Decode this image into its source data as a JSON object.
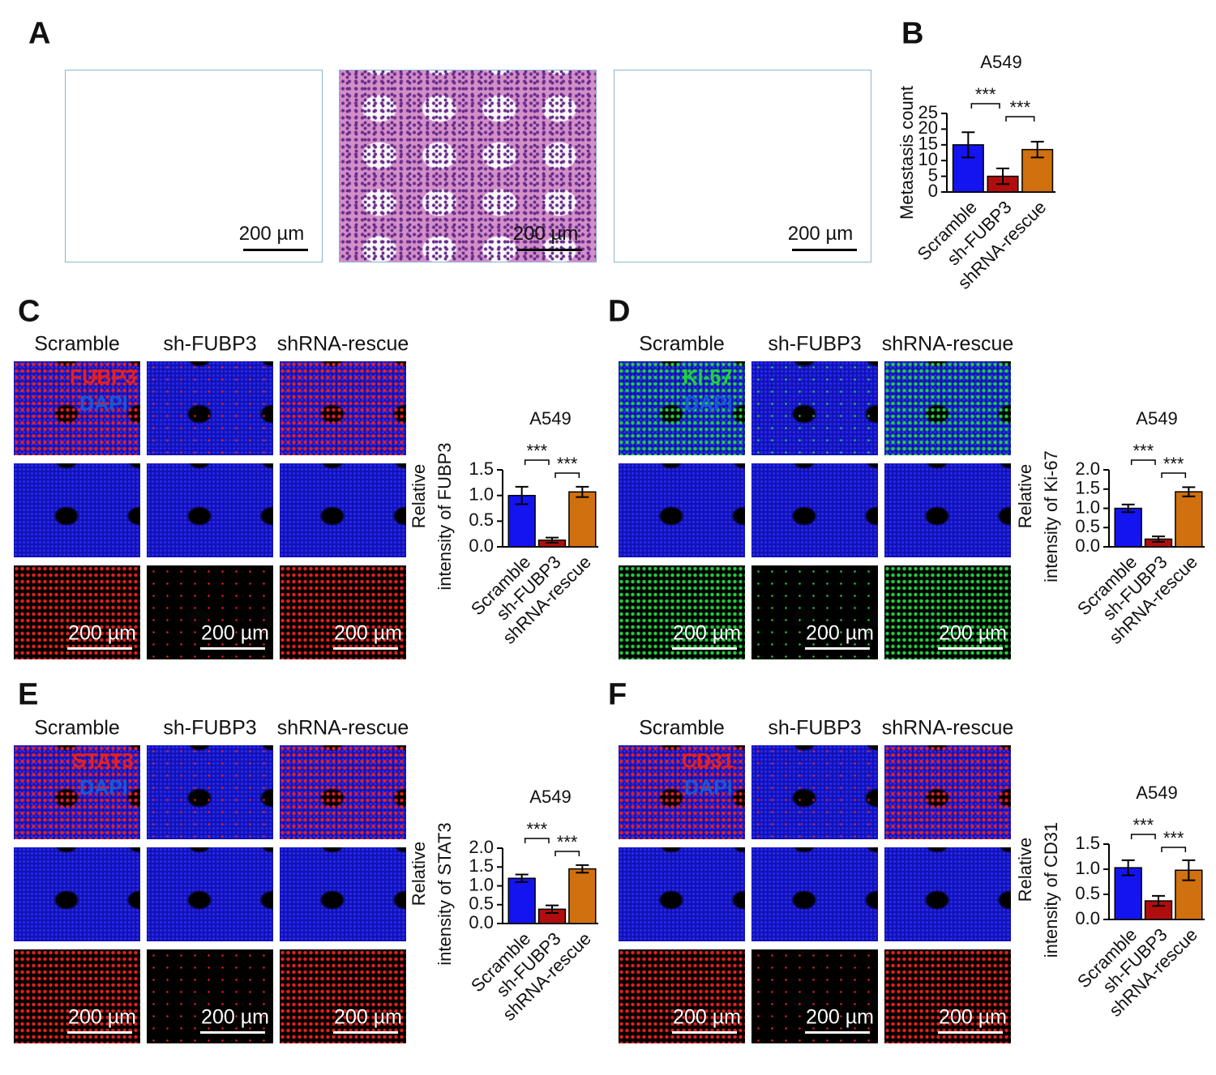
{
  "panel_labels": [
    "A",
    "B",
    "C",
    "D",
    "E",
    "F"
  ],
  "histology": {
    "scale_bar": "200 µm"
  },
  "if_panels": [
    {
      "groups": [
        "Scramble",
        "sh-FUBP3",
        "shRNA-rescue"
      ],
      "marker": "FUBP3",
      "marker_color": "#e8201c",
      "counterstain": "DAPI",
      "scale_bar": "200 µm"
    },
    {
      "groups": [
        "Scramble",
        "sh-FUBP3",
        "shRNA-rescue"
      ],
      "marker": "Ki-67",
      "marker_color": "#20d040",
      "counterstain": "DAPI",
      "scale_bar": "200 µm"
    },
    {
      "groups": [
        "Scramble",
        "sh-FUBP3",
        "shRNA-rescue"
      ],
      "marker": "STAT3",
      "marker_color": "#e8201c",
      "counterstain": "DAPI",
      "scale_bar": "200 µm"
    },
    {
      "groups": [
        "Scramble",
        "sh-FUBP3",
        "shRNA-rescue"
      ],
      "marker": "CD31",
      "marker_color": "#e8201c",
      "counterstain": "DAPI",
      "scale_bar": "200 µm"
    }
  ],
  "chart_data": [
    {
      "type": "bar",
      "title": "A549",
      "ylabel": "Metastasis count",
      "categories": [
        "Scramble",
        "sh-FUBP3",
        "shRNA-rescue"
      ],
      "values": [
        15,
        5,
        13.5
      ],
      "errors": [
        4,
        2.5,
        2.5
      ],
      "colors": [
        "#1414f0",
        "#b00e0e",
        "#d0700e"
      ],
      "ylim": [
        0,
        25
      ],
      "yticks": [
        0,
        5,
        10,
        15,
        20,
        25
      ],
      "comparisons": [
        {
          "label": "***",
          "pair": [
            "Scramble",
            "sh-FUBP3"
          ]
        },
        {
          "label": "***",
          "pair": [
            "sh-FUBP3",
            "shRNA-rescue"
          ]
        }
      ]
    },
    {
      "type": "bar",
      "title": "A549",
      "ylabel": [
        "Relative",
        "intensity of FUBP3"
      ],
      "categories": [
        "Scramble",
        "sh-FUBP3",
        "shRNA-rescue"
      ],
      "values": [
        1.0,
        0.13,
        1.07
      ],
      "errors": [
        0.17,
        0.05,
        0.1
      ],
      "colors": [
        "#1414f0",
        "#b00e0e",
        "#d0700e"
      ],
      "ylim": [
        0,
        1.5
      ],
      "yticks": [
        {
          "value": 0,
          "label": "0.0"
        },
        0.5,
        {
          "value": 1,
          "label": "1.0"
        },
        1.5
      ],
      "comparisons": [
        {
          "label": "***",
          "pair": [
            "Scramble",
            "sh-FUBP3"
          ]
        },
        {
          "label": "***",
          "pair": [
            "sh-FUBP3",
            "shRNA-rescue"
          ]
        }
      ]
    },
    {
      "type": "bar",
      "title": "A549",
      "ylabel": [
        "Relative",
        "intensity of Ki-67"
      ],
      "categories": [
        "Scramble",
        "sh-FUBP3",
        "shRNA-rescue"
      ],
      "values": [
        1.0,
        0.2,
        1.43
      ],
      "errors": [
        0.1,
        0.07,
        0.12
      ],
      "colors": [
        "#1414f0",
        "#b00e0e",
        "#d0700e"
      ],
      "ylim": [
        0,
        2
      ],
      "yticks": [
        {
          "value": 0,
          "label": "0.0"
        },
        0.5,
        {
          "value": 1,
          "label": "1.0"
        },
        1.5,
        {
          "value": 2,
          "label": "2.0"
        }
      ],
      "comparisons": [
        {
          "label": "***",
          "pair": [
            "Scramble",
            "sh-FUBP3"
          ]
        },
        {
          "label": "***",
          "pair": [
            "sh-FUBP3",
            "shRNA-rescue"
          ]
        }
      ]
    },
    {
      "type": "bar",
      "title": "A549",
      "ylabel": [
        "Relative",
        "intensity of STAT3"
      ],
      "categories": [
        "Scramble",
        "sh-FUBP3",
        "shRNA-rescue"
      ],
      "values": [
        1.2,
        0.38,
        1.45
      ],
      "errors": [
        0.1,
        0.1,
        0.1
      ],
      "colors": [
        "#1414f0",
        "#b00e0e",
        "#d0700e"
      ],
      "ylim": [
        0,
        2
      ],
      "yticks": [
        {
          "value": 0,
          "label": "0.0"
        },
        0.5,
        {
          "value": 1,
          "label": "1.0"
        },
        1.5,
        {
          "value": 2,
          "label": "2.0"
        }
      ],
      "comparisons": [
        {
          "label": "***",
          "pair": [
            "Scramble",
            "sh-FUBP3"
          ]
        },
        {
          "label": "***",
          "pair": [
            "sh-FUBP3",
            "shRNA-rescue"
          ]
        }
      ]
    },
    {
      "type": "bar",
      "title": "A549",
      "ylabel": [
        "Relative",
        "intensity of CD31"
      ],
      "categories": [
        "Scramble",
        "sh-FUBP3",
        "shRNA-rescue"
      ],
      "values": [
        1.03,
        0.37,
        0.98
      ],
      "errors": [
        0.15,
        0.1,
        0.2
      ],
      "colors": [
        "#1414f0",
        "#b00e0e",
        "#d0700e"
      ],
      "ylim": [
        0,
        1.5
      ],
      "yticks": [
        {
          "value": 0,
          "label": "0.0"
        },
        0.5,
        {
          "value": 1,
          "label": "1.0"
        },
        1.5
      ],
      "comparisons": [
        {
          "label": "***",
          "pair": [
            "Scramble",
            "sh-FUBP3"
          ]
        },
        {
          "label": "***",
          "pair": [
            "sh-FUBP3",
            "shRNA-rescue"
          ]
        }
      ]
    }
  ]
}
